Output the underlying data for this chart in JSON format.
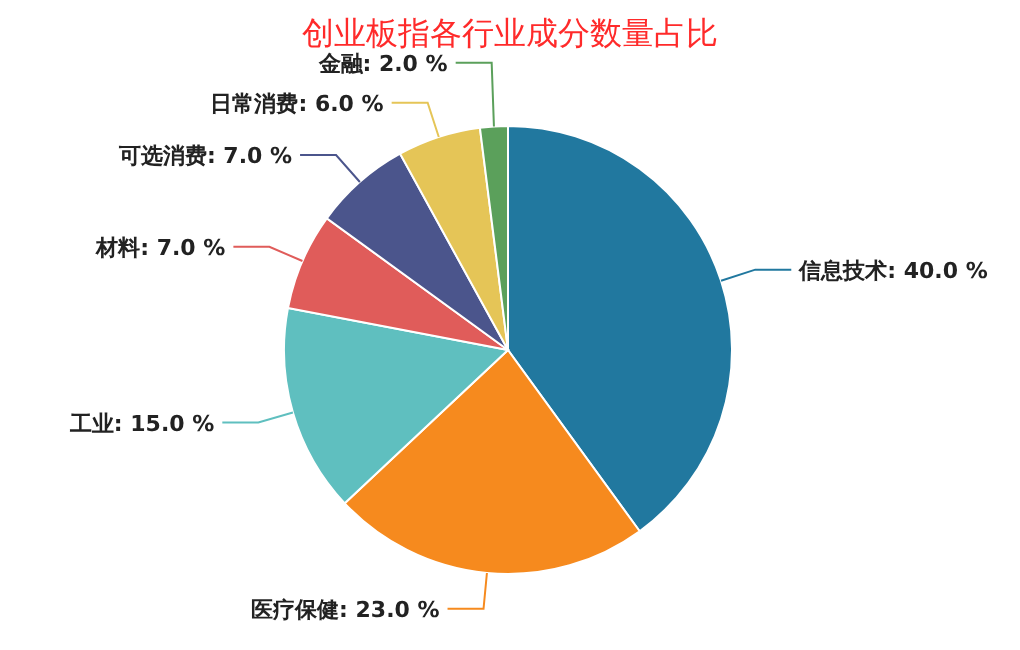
{
  "chart_data": {
    "type": "pie",
    "title": "创业板指各行业成分数量占比",
    "categories": [
      "信息技术",
      "医疗保健",
      "工业",
      "材料",
      "可选消费",
      "日常消费",
      "金融"
    ],
    "values": [
      40,
      23,
      15,
      7,
      7,
      6,
      2
    ],
    "value_labels": [
      "40.0 %",
      "23.0 %",
      "15.0 %",
      "7.0 %",
      "7.0 %",
      "6.0 %",
      "2.0 %"
    ],
    "colors": [
      "#21789f",
      "#f68a1e",
      "#5fbfbf",
      "#e05c5a",
      "#4b558c",
      "#e5c557",
      "#5ba05b"
    ]
  }
}
